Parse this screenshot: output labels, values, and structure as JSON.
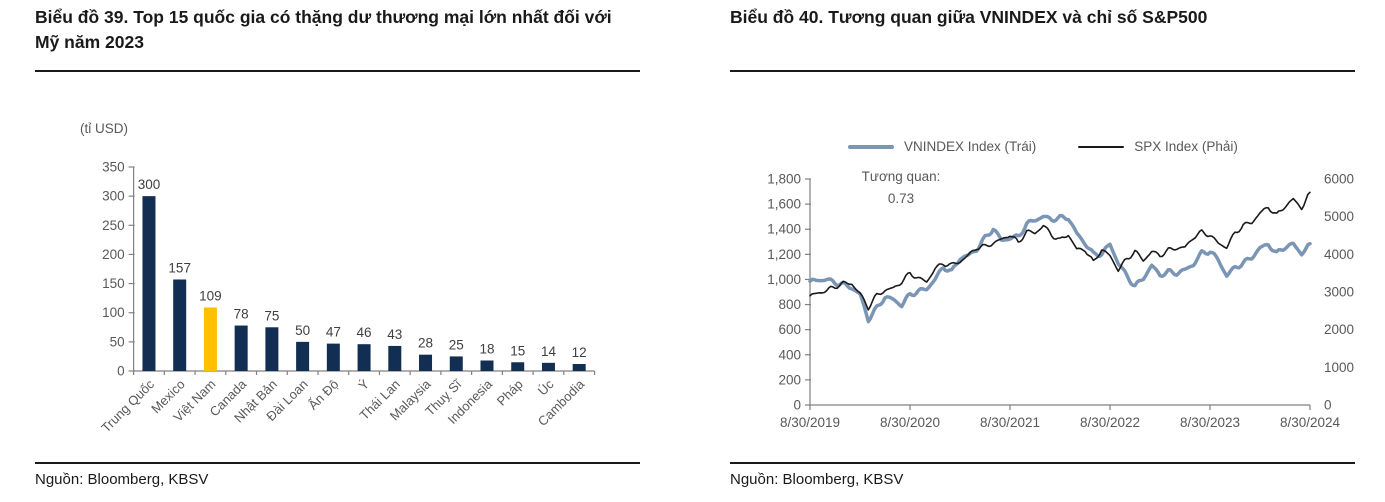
{
  "left_panel": {
    "title": "Biểu đồ 39. Top 15 quốc gia có thặng dư thương mại lớn nhất đối với Mỹ năm 2023",
    "source": "Nguồn: Bloomberg, KBSV"
  },
  "right_panel": {
    "title": "Biểu đồ 40. Tương quan giữa VNINDEX và chỉ số S&P500",
    "source": "Nguồn: Bloomberg, KBSV"
  },
  "colors": {
    "bar_navy": "#132E53",
    "bar_highlight": "#FFC000",
    "vnindex_line": "#7B96B5",
    "spx_line": "#1A1A1A",
    "axis_line": "#808080",
    "tick_text": "#595959",
    "value_label": "#404040"
  },
  "chart_data": [
    {
      "type": "bar",
      "title": "Biểu đồ 39. Top 15 quốc gia có thặng dư thương mại lớn nhất đối với Mỹ năm 2023",
      "unit_label": "(tỉ USD)",
      "categories": [
        "Trung Quốc",
        "Mexico",
        "Việt Nam",
        "Canada",
        "Nhật Bản",
        "Đài Loan",
        "Ấn Độ",
        "Ý",
        "Thái Lan",
        "Malaysia",
        "Thuỵ Sĩ",
        "Indonesia",
        "Pháp",
        "Úc",
        "Cambodia"
      ],
      "values": [
        300,
        157,
        109,
        78,
        75,
        50,
        47,
        46,
        43,
        28,
        25,
        18,
        15,
        14,
        12
      ],
      "highlight_index": 2,
      "ylim": [
        0,
        350
      ],
      "ytick_step": 50,
      "grid": false,
      "source": "Nguồn: Bloomberg, KBSV"
    },
    {
      "type": "line",
      "title": "Biểu đồ 40. Tương quan giữa VNINDEX và chỉ số S&P500",
      "annotation": {
        "line1": "Tương quan:",
        "line2": "0.73"
      },
      "x_labels": [
        "8/30/2019",
        "8/30/2020",
        "8/30/2021",
        "8/30/2022",
        "8/30/2023",
        "8/30/2024"
      ],
      "left_axis": {
        "min": 0,
        "max": 1800,
        "step": 200
      },
      "right_axis": {
        "min": 0,
        "max": 6000,
        "step": 1000
      },
      "grid": false,
      "legend_position": "top",
      "series": [
        {
          "name": "VNINDEX Index  (Trái)",
          "axis": "left",
          "color": "#7B96B5",
          "stroke_width": 3.5,
          "values": [
            985,
            995,
            1000,
            975,
            960,
            935,
            880,
            680,
            770,
            860,
            840,
            795,
            880,
            905,
            925,
            1000,
            1100,
            1060,
            1170,
            1190,
            1240,
            1330,
            1405,
            1310,
            1330,
            1340,
            1440,
            1475,
            1500,
            1478,
            1490,
            1492,
            1365,
            1290,
            1200,
            1205,
            1280,
            1130,
            1030,
            945,
            1010,
            1110,
            1035,
            1060,
            1050,
            1075,
            1120,
            1210,
            1225,
            1155,
            1030,
            1095,
            1130,
            1175,
            1250,
            1280,
            1205,
            1260,
            1280,
            1205,
            1285
          ]
        },
        {
          "name": "SPX Index  (Phải)",
          "axis": "right",
          "color": "#1A1A1A",
          "stroke_width": 1.6,
          "values": [
            2900,
            2975,
            3040,
            3140,
            3230,
            3225,
            2950,
            2585,
            2910,
            3045,
            3100,
            3270,
            3500,
            3365,
            3270,
            3620,
            3755,
            3715,
            3810,
            3970,
            4180,
            4205,
            4300,
            4395,
            4520,
            4310,
            4605,
            4565,
            4765,
            4515,
            4375,
            4530,
            4130,
            4130,
            3785,
            4130,
            3955,
            3585,
            3870,
            4080,
            3840,
            4075,
            3970,
            4110,
            4170,
            4180,
            4450,
            4590,
            4510,
            4290,
            4190,
            4565,
            4770,
            4845,
            5095,
            5255,
            5035,
            5280,
            5460,
            5230,
            5648
          ]
        }
      ],
      "source": "Nguồn: Bloomberg, KBSV"
    }
  ]
}
